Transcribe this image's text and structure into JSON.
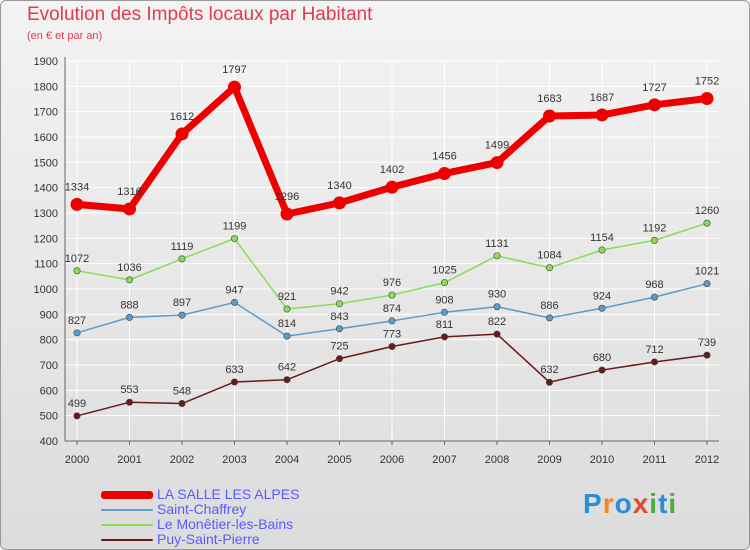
{
  "chart_data": {
    "type": "line",
    "title": "Evolution des Impôts locaux par Habitant",
    "subtitle": "(en € et par an)",
    "x": [
      "2000",
      "2001",
      "2002",
      "2003",
      "2004",
      "2005",
      "2006",
      "2007",
      "2008",
      "2009",
      "2010",
      "2011",
      "2012"
    ],
    "ylim": [
      400,
      1900
    ],
    "yticks": [
      "400",
      "500",
      "600",
      "700",
      "800",
      "900",
      "1000",
      "1100",
      "1200",
      "1300",
      "1400",
      "1500",
      "1600",
      "1700",
      "1800",
      "1900"
    ],
    "grid": true,
    "legend_position": "bottom-left",
    "series": [
      {
        "name": "LA SALLE LES ALPES",
        "color": "#ee0000",
        "values": [
          1334,
          1316,
          1612,
          1797,
          1296,
          1340,
          1402,
          1456,
          1499,
          1683,
          1687,
          1727,
          1752
        ]
      },
      {
        "name": "Saint-Chaffrey",
        "color": "#5b9ccb",
        "values": [
          827,
          888,
          897,
          947,
          814,
          843,
          874,
          908,
          930,
          886,
          924,
          968,
          1021
        ]
      },
      {
        "name": "Le Monêtier-les-Bains",
        "color": "#88dd55",
        "values": [
          1072,
          1036,
          1119,
          1199,
          921,
          942,
          976,
          1025,
          1131,
          1084,
          1154,
          1192,
          1260
        ]
      },
      {
        "name": "Puy-Saint-Pierre",
        "color": "#6b1a1a",
        "values": [
          499,
          553,
          548,
          633,
          642,
          725,
          773,
          811,
          822,
          632,
          680,
          712,
          739
        ]
      }
    ]
  },
  "logo": {
    "letters": [
      "P",
      "r",
      "o",
      "x",
      "i",
      "t",
      "i"
    ]
  }
}
